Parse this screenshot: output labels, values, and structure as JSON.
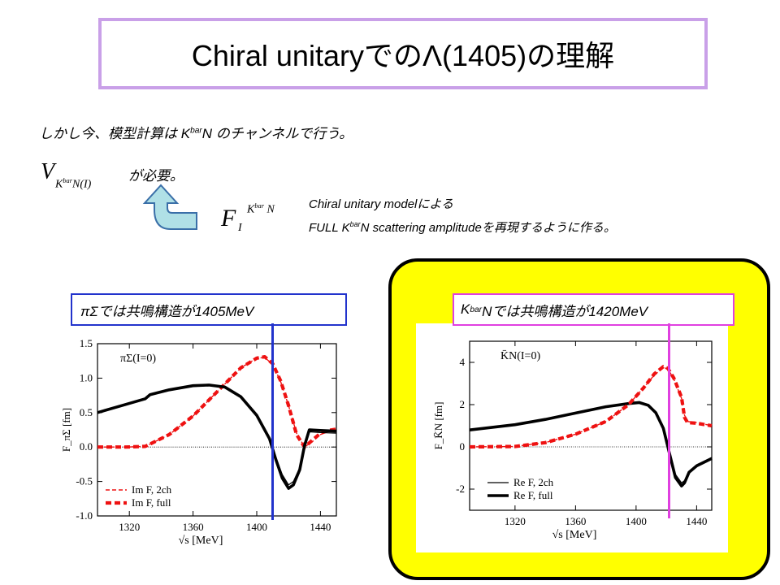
{
  "title": {
    "text_a": "Chiral unitary",
    "text_b": "での",
    "text_c": "Λ(1405)",
    "text_d": "の理解"
  },
  "body": {
    "line1_a": "しかし今、模型計算は K",
    "line1_sup": "bar",
    "line1_b": "N のチャンネルで行う。",
    "v_symbol": "V",
    "v_subscript": "K",
    "v_subscript_sup": "bar",
    "v_subscript_rest": "N(I)",
    "needed": "が必要。",
    "f_symbol": "F",
    "f_subscript": "I",
    "f_superscript": "K",
    "f_superscript_sup": "bar",
    "f_superscript_rest": " N",
    "desc1": "Chiral unitary modelによる",
    "desc2_a": "FULL K",
    "desc2_sup": "bar",
    "desc2_b": "N scattering amplitudeを再現するように作る。"
  },
  "labels": {
    "left": "πΣでは共鳴構造が1405MeV",
    "right_a": "K",
    "right_sup": "bar",
    "right_b": "Nでは共鳴構造が1420MeV"
  },
  "colors": {
    "title_border": "#c9a0e8",
    "left_label_border": "#2233cc",
    "right_label_border": "#e040e0",
    "highlight": "#ffff00",
    "curve_red": "#ee1111",
    "arrow_fill": "#b0e0e6",
    "arrow_stroke": "#3a6fa8"
  },
  "chart_data": [
    {
      "type": "line",
      "panel_label": "πΣ(I=0)",
      "xlabel": "√s [MeV]",
      "ylabel": "F_πΣ [fm]",
      "xlim": [
        1300,
        1450
      ],
      "ylim": [
        -1.0,
        1.5
      ],
      "xticks": [
        1320,
        1360,
        1400,
        1440
      ],
      "yticks": [
        -1.0,
        -0.5,
        0.0,
        0.5,
        1.0,
        1.5
      ],
      "xtick_labels": [
        "1320",
        "1360",
        "1400",
        "1440"
      ],
      "ytick_labels": [
        "-1.0",
        "-0.5",
        "0.0",
        "0.5",
        "1.0",
        "1.5"
      ],
      "legend": [
        "Im F, 2ch",
        "Im F, full"
      ],
      "legend_position": "bottom-left",
      "marker_line_x": 1410,
      "series": [
        {
          "name": "Im F, 2ch",
          "style": "dashed-thin",
          "color": "#ee1111",
          "x": [
            1300,
            1318,
            1330,
            1345,
            1360,
            1375,
            1390,
            1400,
            1405,
            1410,
            1415,
            1420,
            1425,
            1430,
            1435,
            1440,
            1445,
            1450
          ],
          "y": [
            0.0,
            0.0,
            0.01,
            0.18,
            0.45,
            0.8,
            1.15,
            1.29,
            1.3,
            1.2,
            0.95,
            0.6,
            0.2,
            0.0,
            0.08,
            0.18,
            0.23,
            0.25
          ]
        },
        {
          "name": "Im F, full",
          "style": "dashed-thick",
          "color": "#ee1111",
          "x": [
            1300,
            1318,
            1330,
            1345,
            1360,
            1375,
            1390,
            1400,
            1405,
            1410,
            1415,
            1420,
            1425,
            1430,
            1435,
            1440,
            1445,
            1450
          ],
          "y": [
            0.0,
            0.0,
            0.01,
            0.18,
            0.45,
            0.8,
            1.15,
            1.29,
            1.31,
            1.21,
            0.96,
            0.6,
            0.18,
            0.0,
            0.1,
            0.2,
            0.24,
            0.26
          ]
        },
        {
          "name": "Re F, 2ch",
          "style": "solid-thin",
          "color": "#000000",
          "x": [
            1300,
            1315,
            1330,
            1333,
            1345,
            1360,
            1370,
            1380,
            1390,
            1400,
            1408,
            1412,
            1416,
            1420,
            1423,
            1427,
            1430,
            1433,
            1440,
            1450
          ],
          "y": [
            0.5,
            0.6,
            0.7,
            0.75,
            0.82,
            0.88,
            0.89,
            0.86,
            0.72,
            0.45,
            0.1,
            -0.15,
            -0.4,
            -0.55,
            -0.5,
            -0.3,
            0.05,
            0.22,
            0.21,
            0.2
          ]
        },
        {
          "name": "Re F, full",
          "style": "solid-thick",
          "color": "#000000",
          "x": [
            1300,
            1315,
            1330,
            1333,
            1345,
            1360,
            1370,
            1380,
            1390,
            1400,
            1408,
            1412,
            1416,
            1420,
            1423,
            1427,
            1430,
            1433,
            1440,
            1450
          ],
          "y": [
            0.5,
            0.6,
            0.7,
            0.76,
            0.83,
            0.89,
            0.9,
            0.87,
            0.73,
            0.46,
            0.12,
            -0.18,
            -0.45,
            -0.6,
            -0.55,
            -0.33,
            0.02,
            0.25,
            0.24,
            0.23
          ]
        }
      ]
    },
    {
      "type": "line",
      "panel_label": "K̄N(I=0)",
      "xlabel": "√s [MeV]",
      "ylabel": "F_K̄N [fm]",
      "xlim": [
        1290,
        1450
      ],
      "ylim": [
        -3,
        5
      ],
      "xticks": [
        1320,
        1360,
        1400,
        1440
      ],
      "yticks": [
        -2,
        0,
        2,
        4
      ],
      "xtick_labels": [
        "1320",
        "1360",
        "1400",
        "1440"
      ],
      "ytick_labels": [
        "-2",
        "0",
        "2",
        "4"
      ],
      "legend": [
        "Re F, 2ch",
        "Re F, full"
      ],
      "legend_position": "bottom-right",
      "marker_line_x": 1422,
      "series": [
        {
          "name": "Re F, 2ch",
          "style": "solid-thin",
          "color": "#000000",
          "x": [
            1290,
            1320,
            1340,
            1360,
            1380,
            1395,
            1402,
            1408,
            1413,
            1418,
            1422,
            1426,
            1430,
            1432,
            1435,
            1440,
            1450
          ],
          "y": [
            0.8,
            1.05,
            1.3,
            1.6,
            1.9,
            2.05,
            2.08,
            1.95,
            1.6,
            0.9,
            -0.2,
            -1.3,
            -1.7,
            -1.6,
            -1.15,
            -0.85,
            -0.5
          ]
        },
        {
          "name": "Re F, full",
          "style": "solid-thick",
          "color": "#000000",
          "x": [
            1290,
            1320,
            1340,
            1360,
            1380,
            1395,
            1402,
            1408,
            1413,
            1418,
            1422,
            1426,
            1430,
            1432,
            1435,
            1440,
            1450
          ],
          "y": [
            0.8,
            1.05,
            1.3,
            1.6,
            1.9,
            2.05,
            2.1,
            1.97,
            1.62,
            0.88,
            -0.3,
            -1.45,
            -1.85,
            -1.7,
            -1.2,
            -0.9,
            -0.55
          ]
        },
        {
          "name": "Im F, 2ch",
          "style": "dashed-thin",
          "color": "#ee1111",
          "x": [
            1290,
            1320,
            1340,
            1360,
            1380,
            1395,
            1405,
            1412,
            1418,
            1421,
            1425,
            1430,
            1432,
            1434,
            1440,
            1450
          ],
          "y": [
            0.0,
            0.02,
            0.2,
            0.6,
            1.2,
            2.0,
            2.8,
            3.4,
            3.75,
            3.7,
            3.2,
            2.3,
            1.5,
            1.2,
            1.15,
            1.0
          ]
        },
        {
          "name": "Im F, full",
          "style": "dashed-thick",
          "color": "#ee1111",
          "x": [
            1290,
            1320,
            1340,
            1360,
            1380,
            1395,
            1405,
            1412,
            1418,
            1421,
            1425,
            1430,
            1432,
            1434,
            1440,
            1450
          ],
          "y": [
            0.0,
            0.02,
            0.2,
            0.6,
            1.2,
            2.0,
            2.8,
            3.45,
            3.8,
            3.72,
            3.25,
            2.35,
            1.4,
            1.15,
            1.12,
            1.0
          ]
        }
      ]
    }
  ]
}
